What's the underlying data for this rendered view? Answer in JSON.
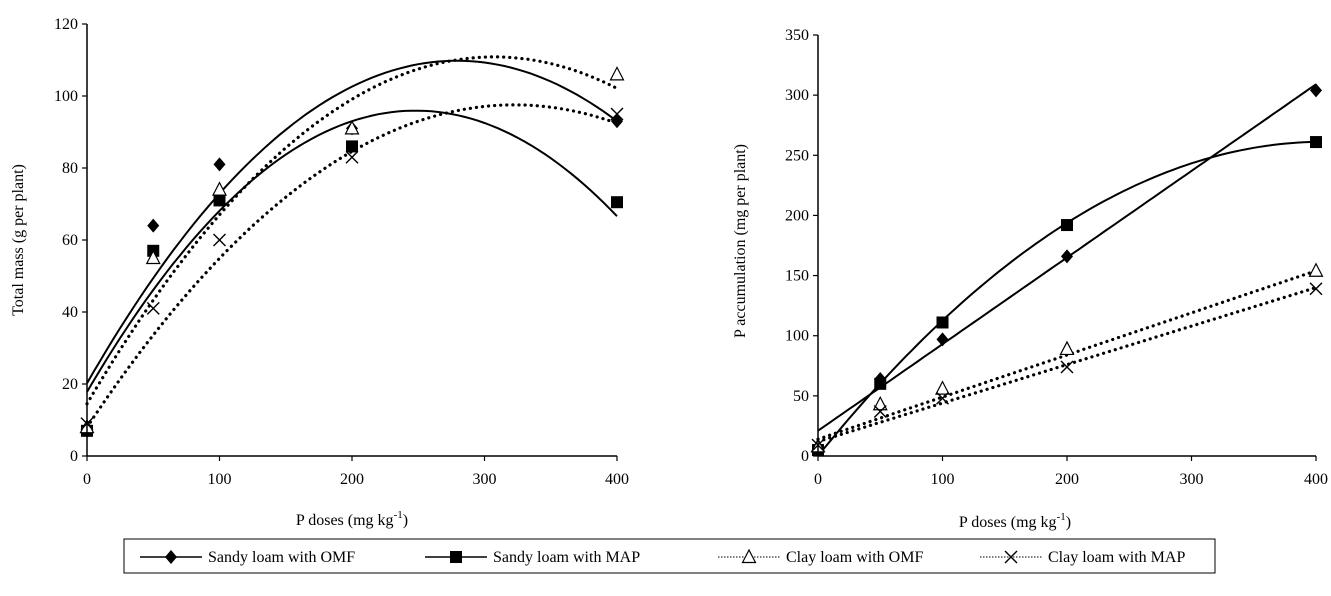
{
  "chart_data": [
    {
      "type": "scatter",
      "trendline": "quadratic",
      "xlabel": "P doses (mg kg",
      "xlabel_sup": "-1",
      "xlabel_suffix": ")",
      "ylabel": "Total mass (g per plant)",
      "xlim": [
        0,
        400
      ],
      "ylim": [
        0,
        120
      ],
      "xticks": [
        0,
        100,
        200,
        300,
        400
      ],
      "yticks": [
        0,
        20,
        40,
        60,
        80,
        100,
        120
      ],
      "grid": false,
      "series": [
        {
          "name": "Sandy loam with OMF",
          "marker": "diamond",
          "line": "solid",
          "x": [
            0,
            50,
            100,
            200,
            400
          ],
          "y": [
            7,
            64,
            81,
            91,
            93
          ],
          "fit": [
            20.2,
            0.642,
            -0.00115
          ]
        },
        {
          "name": "Sandy loam with MAP",
          "marker": "square",
          "line": "solid",
          "x": [
            0,
            50,
            100,
            200,
            400
          ],
          "y": [
            7,
            57,
            71,
            86,
            70.5
          ],
          "fit": [
            17.8,
            0.63,
            -0.00127
          ]
        },
        {
          "name": "Clay loam with OMF",
          "marker": "triangle-open",
          "line": "dotted",
          "x": [
            0,
            50,
            100,
            200,
            400
          ],
          "y": [
            8,
            55,
            74,
            91,
            106
          ],
          "fit": [
            14.5,
            0.627,
            -0.00102
          ]
        },
        {
          "name": "Clay loam with MAP",
          "marker": "x",
          "line": "dotted",
          "x": [
            0,
            50,
            100,
            200,
            400
          ],
          "y": [
            9,
            41,
            60,
            83,
            95
          ],
          "fit": [
            8.0,
            0.555,
            -0.00086
          ]
        }
      ]
    },
    {
      "type": "scatter",
      "trendline": "mixed",
      "xlabel": "P doses (mg kg",
      "xlabel_sup": "-1",
      "xlabel_suffix": ")",
      "ylabel": "P accumulation (mg per plant)",
      "xlim": [
        0,
        400
      ],
      "ylim": [
        0,
        350
      ],
      "xticks": [
        0,
        100,
        200,
        300,
        400
      ],
      "yticks": [
        0,
        50,
        100,
        150,
        200,
        250,
        300,
        350
      ],
      "grid": false,
      "series": [
        {
          "name": "Sandy loam with OMF",
          "marker": "diamond",
          "line": "solid",
          "x": [
            0,
            50,
            100,
            200,
            400
          ],
          "y": [
            7,
            64,
            97,
            166,
            304
          ],
          "fit": [
            21,
            0.72,
            0
          ]
        },
        {
          "name": "Sandy loam with MAP",
          "marker": "square",
          "line": "solid",
          "x": [
            0,
            50,
            100,
            200,
            400
          ],
          "y": [
            5,
            60,
            111,
            192,
            261
          ],
          "fit": [
            0,
            1.285,
            -0.00158
          ]
        },
        {
          "name": "Clay loam with OMF",
          "marker": "triangle-open",
          "line": "dotted",
          "x": [
            0,
            50,
            100,
            200,
            400
          ],
          "y": [
            8,
            43,
            56,
            89,
            154
          ],
          "fit": [
            14,
            0.35,
            0
          ]
        },
        {
          "name": "Clay loam with MAP",
          "marker": "x",
          "line": "dotted",
          "x": [
            0,
            50,
            100,
            200,
            400
          ],
          "y": [
            9,
            37,
            48,
            74,
            139
          ],
          "fit": [
            12,
            0.32,
            0
          ]
        }
      ]
    }
  ],
  "legend": {
    "placement": "bottom",
    "items": [
      {
        "label": "Sandy loam with OMF",
        "marker": "diamond",
        "line": "solid"
      },
      {
        "label": "Sandy loam with MAP",
        "marker": "square",
        "line": "solid"
      },
      {
        "label": "Clay loam with OMF",
        "marker": "triangle-open",
        "line": "dotted"
      },
      {
        "label": "Clay loam with MAP",
        "marker": "x",
        "line": "dotted"
      }
    ]
  }
}
